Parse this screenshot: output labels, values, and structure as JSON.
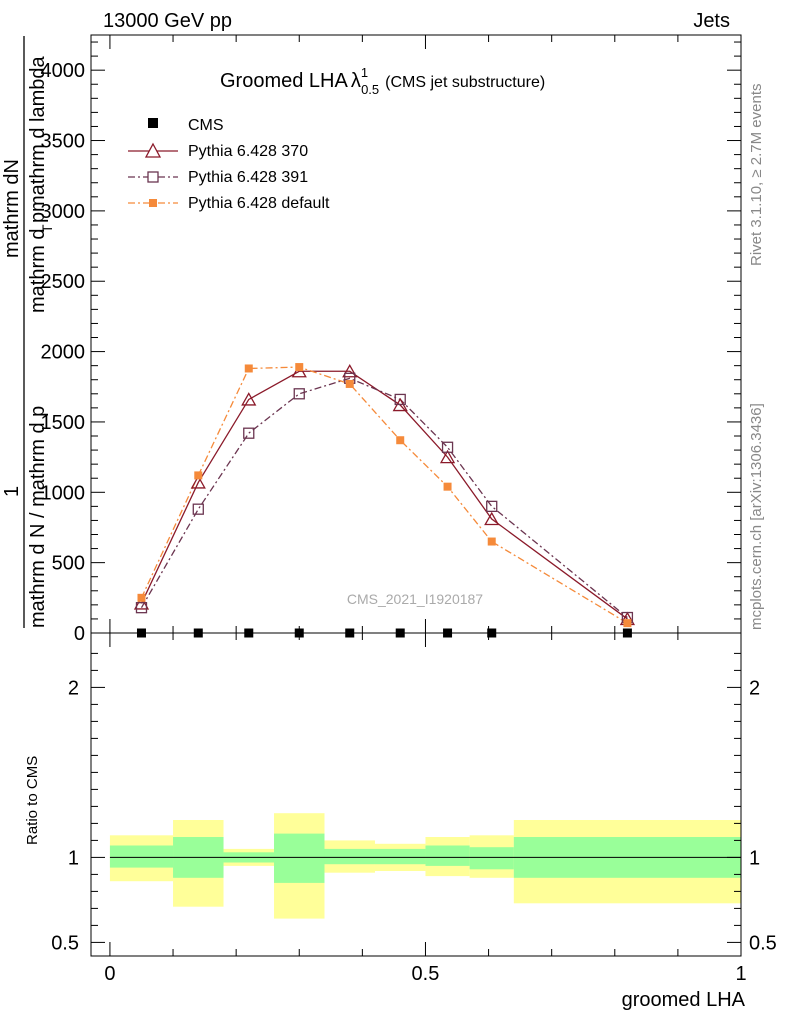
{
  "header": {
    "left": "13000 GeV pp",
    "right": "Jets"
  },
  "side_labels": {
    "rivet": "Rivet 3.1.10, ≥ 2.7M events",
    "mcplots": "mcplots.cern.ch [arXiv:1306.3436]"
  },
  "chart_data": [
    {
      "type": "line",
      "title_main": "Groomed LHA",
      "title_lambda": "λ",
      "title_sup": "1",
      "title_sub": "0.5",
      "title_note": "(CMS jet substructure)",
      "watermark": "CMS_2021_I1920187",
      "ylabel_numerator_1": "1",
      "ylabel_numerator_2": "mathrm dN",
      "ylabel_denominator_1": "mathrm d N / mathrm d p",
      "ylabel_denominator_2": "mathrm d p",
      "ylabel_denominator_3": "mathrm d lambda",
      "ylabel_sub": "T",
      "ylim": [
        0,
        4250
      ],
      "yticks": [
        0,
        500,
        1000,
        1500,
        2000,
        2500,
        3000,
        3500,
        4000
      ],
      "ytick_labels": [
        "0",
        "500",
        "1000",
        "1500",
        "2000",
        "2500",
        "3000",
        "3500",
        "4000"
      ],
      "xlim": [
        -0.03,
        1.0
      ],
      "legend_position": "top-left",
      "series": [
        {
          "name": "CMS",
          "color": "#000000",
          "marker": "filled-square",
          "x": [
            0.05,
            0.14,
            0.22,
            0.3,
            0.38,
            0.46,
            0.535,
            0.605,
            0.82
          ],
          "y": [
            0,
            0,
            0,
            0,
            0,
            0,
            0,
            0,
            0
          ]
        },
        {
          "name": "Pythia 6.428 370",
          "color": "#8b1a2a",
          "marker": "open-triangle",
          "dash": "solid",
          "x": [
            0.05,
            0.14,
            0.22,
            0.3,
            0.38,
            0.46,
            0.535,
            0.605,
            0.82
          ],
          "y": [
            210,
            1070,
            1660,
            1860,
            1860,
            1620,
            1250,
            810,
            100
          ]
        },
        {
          "name": "Pythia 6.428 391",
          "color": "#6b3550",
          "marker": "open-square",
          "dash": "dashdot",
          "x": [
            0.05,
            0.14,
            0.22,
            0.3,
            0.38,
            0.46,
            0.535,
            0.605,
            0.82
          ],
          "y": [
            180,
            880,
            1420,
            1700,
            1810,
            1660,
            1320,
            900,
            110
          ]
        },
        {
          "name": "Pythia 6.428 default",
          "color": "#f58a3a",
          "marker": "filled-square-small",
          "dash": "dashdot",
          "x": [
            0.05,
            0.14,
            0.22,
            0.3,
            0.38,
            0.46,
            0.535,
            0.605,
            0.82
          ],
          "y": [
            250,
            1120,
            1880,
            1890,
            1770,
            1370,
            1040,
            650,
            70
          ]
        }
      ]
    },
    {
      "type": "area",
      "ylabel": "Ratio to CMS",
      "xlabel": "groomed LHA",
      "ylim": [
        0.42,
        2.32
      ],
      "yticks": [
        0.5,
        1,
        2
      ],
      "ytick_labels": [
        "0.5",
        "1",
        "2"
      ],
      "xlim": [
        -0.03,
        1.0
      ],
      "xticks": [
        0,
        0.5,
        1
      ],
      "xtick_labels": [
        "0",
        "0.5",
        "1"
      ],
      "colors": {
        "outer_band": "#ffff99",
        "inner_band": "#99ff99",
        "reference_line": "#000000"
      },
      "bins": [
        {
          "x0": 0.0,
          "x1": 0.1,
          "inner": [
            0.94,
            1.07
          ],
          "outer": [
            0.86,
            1.13
          ]
        },
        {
          "x0": 0.1,
          "x1": 0.18,
          "inner": [
            0.88,
            1.12
          ],
          "outer": [
            0.71,
            1.22
          ]
        },
        {
          "x0": 0.18,
          "x1": 0.26,
          "inner": [
            0.97,
            1.03
          ],
          "outer": [
            0.95,
            1.05
          ]
        },
        {
          "x0": 0.26,
          "x1": 0.34,
          "inner": [
            0.85,
            1.14
          ],
          "outer": [
            0.64,
            1.26
          ]
        },
        {
          "x0": 0.34,
          "x1": 0.42,
          "inner": [
            0.96,
            1.05
          ],
          "outer": [
            0.91,
            1.1
          ]
        },
        {
          "x0": 0.42,
          "x1": 0.5,
          "inner": [
            0.96,
            1.05
          ],
          "outer": [
            0.92,
            1.08
          ]
        },
        {
          "x0": 0.5,
          "x1": 0.57,
          "inner": [
            0.95,
            1.07
          ],
          "outer": [
            0.89,
            1.12
          ]
        },
        {
          "x0": 0.57,
          "x1": 0.64,
          "inner": [
            0.93,
            1.06
          ],
          "outer": [
            0.88,
            1.13
          ]
        },
        {
          "x0": 0.64,
          "x1": 1.0,
          "inner": [
            0.88,
            1.12
          ],
          "outer": [
            0.73,
            1.22
          ]
        }
      ]
    }
  ]
}
